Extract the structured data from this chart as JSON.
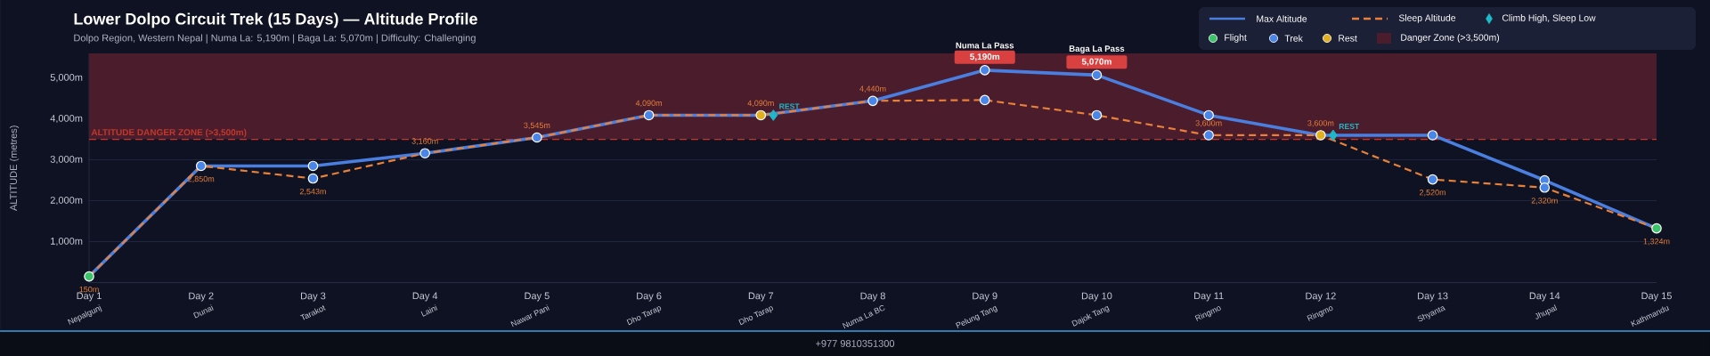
{
  "chart_data": {
    "type": "line",
    "title": "Lower Dolpo Circuit Trek (15 Days) — Altitude Profile",
    "subtitle": "Dolpo Region, Western Nepal | Numa La: 5,190m | Baga La: 5,070m | Difficulty: Challenging",
    "ylabel": "ALTITUDE (metres)",
    "categories": [
      "Day 1",
      "Day 2",
      "Day 3",
      "Day 4",
      "Day 5",
      "Day 6",
      "Day 7",
      "Day 8",
      "Day 9",
      "Day 10",
      "Day 11",
      "Day 12",
      "Day 13",
      "Day 14",
      "Day 15"
    ],
    "series": [
      {
        "name": "Max Altitude",
        "type": "line",
        "color": "#4a7fe0",
        "line_style": "solid",
        "marker": "none",
        "values": [
          150,
          2850,
          2850,
          3160,
          3545,
          4090,
          4090,
          4440,
          5190,
          5070,
          4090,
          3600,
          3600,
          2500,
          1324
        ],
        "value_labels": [
          null,
          null,
          null,
          null,
          null,
          null,
          null,
          null,
          "5,190m",
          "5,070m",
          null,
          null,
          null,
          null,
          null
        ]
      },
      {
        "name": "Sleep Altitude",
        "type": "line",
        "color": "#e8803a",
        "line_style": "dashed",
        "marker": "none",
        "values": [
          150,
          2850,
          2543,
          3160,
          3545,
          4090,
          4090,
          4440,
          4460,
          4090,
          3600,
          3600,
          2520,
          2320,
          1324
        ],
        "value_labels": [
          "150m",
          "2,850m",
          "2,543m",
          "3,160m",
          "3,545m",
          "4,090m",
          "4,090m",
          "4,440m",
          null,
          null,
          "3,600m",
          "3,600m",
          "2,520m",
          "2,320m",
          "1,324m"
        ]
      },
      {
        "name": "Climb High, Sleep Low",
        "type": "scatter",
        "marker": "diamond",
        "color": "#1fb8c8",
        "x": [
          "Day 7",
          "Day 12"
        ],
        "values": [
          4090,
          3600
        ]
      },
      {
        "name": "Flight",
        "type": "scatter",
        "marker": "circle",
        "color": "#3cc46a",
        "x": [
          "Day 1",
          "Day 15"
        ],
        "values": [
          150,
          1324
        ]
      },
      {
        "name": "Trek",
        "type": "scatter",
        "marker": "circle",
        "color": "#4a86e8",
        "x": [
          "Day 2",
          "Day 3",
          "Day 3",
          "Day 4",
          "Day 5",
          "Day 6",
          "Day 8",
          "Day 9",
          "Day 9",
          "Day 10",
          "Day 10",
          "Day 11",
          "Day 11",
          "Day 13",
          "Day 13",
          "Day 14",
          "Day 14"
        ],
        "values": [
          2850,
          2850,
          2543,
          3160,
          3545,
          4090,
          4440,
          5190,
          4460,
          5070,
          4090,
          4090,
          3600,
          3600,
          2520,
          2500,
          2320
        ]
      },
      {
        "name": "Rest",
        "type": "scatter",
        "marker": "circle",
        "color": "#e0b020",
        "x": [
          "Day 7",
          "Day 12"
        ],
        "values": [
          4090,
          3600
        ]
      }
    ],
    "bands": [
      {
        "axis": "y",
        "from": 3500,
        "to": 5600,
        "label": "Danger Zone (>3,500m)",
        "color": "#4a1c2c"
      }
    ],
    "ref_lines": [
      {
        "axis": "y",
        "value": 3500,
        "label": "ALTITUDE DANGER ZONE (>3,500m)",
        "color": "#c0392b",
        "line_style": "dashed"
      }
    ],
    "ylim": [
      0,
      5600
    ],
    "yticks": [
      {
        "value": 1000,
        "label": "1,000m"
      },
      {
        "value": 2000,
        "label": "2,000m"
      },
      {
        "value": 3000,
        "label": "3,000m"
      },
      {
        "value": 4000,
        "label": "4,000m"
      },
      {
        "value": 5000,
        "label": "5,000m"
      }
    ],
    "grid": "y",
    "legend": "top right",
    "annotations": [
      {
        "text": "Numa La Pass",
        "x": "Day 9",
        "y": 5190
      },
      {
        "text": "Baga La Pass",
        "x": "Day 10",
        "y": 5070
      },
      {
        "text": "REST",
        "x": "Day 7",
        "y": 4090
      },
      {
        "text": "REST",
        "x": "Day 12",
        "y": 3600
      },
      "Nepalgunj",
      "Dunai",
      "Tarakot",
      "Laini",
      "Nawar Pani",
      "Dho Tarap",
      "Dho Tarap",
      "Numa La BC",
      "Pelung Tang",
      "Dajok Tang",
      "Ringmo",
      "Ringmo",
      "Shyanta",
      "Jhupal",
      "Kathmandu",
      "+977 9810351300"
    ]
  }
}
